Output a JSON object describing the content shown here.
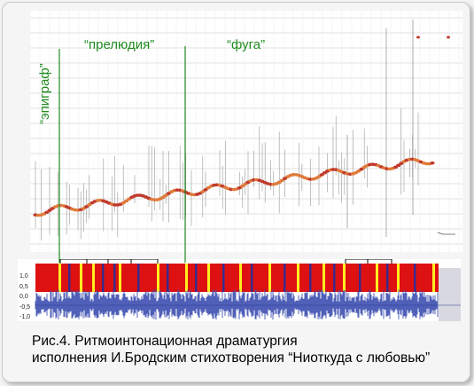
{
  "section_labels": {
    "epigraph": "“эпиграф”",
    "prelude": "“прелюдия”",
    "fugue": "“фуга”"
  },
  "waveform_axis": {
    "ticks": [
      "1,0",
      "0,5",
      "0,0",
      "-0,5",
      "-1,0"
    ]
  },
  "caption": {
    "line1": "Рис.4. Ритмоинтонационная драматургия",
    "line2": "исполнения И.Бродским стихотворения “Ниоткуда с любовью”"
  },
  "colors": {
    "section_marker": "#1f8c1f",
    "pitch_curve": "#c0392b",
    "energy_band": "#dd1111",
    "yellow_marker": "#ffee22",
    "blue_marker": "#3a2a8a",
    "waveform": "#3d4fb0"
  }
}
